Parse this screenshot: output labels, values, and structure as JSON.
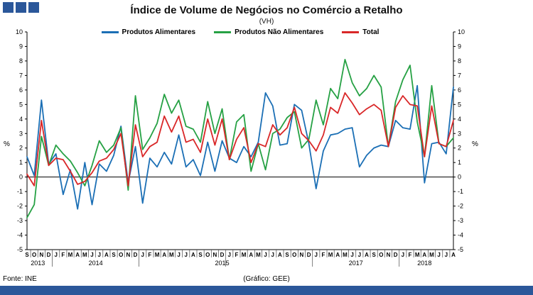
{
  "footer": {
    "source": "Fonte: INE",
    "credit": "(Gráfico: GEE)"
  },
  "colors": {
    "accent_blue": "#2b579a",
    "axis": "#000000"
  },
  "chart_data": {
    "type": "line",
    "title": "Índice de Volume de Negócios no Comércio a Retalho",
    "subtitle": "(VH)",
    "ylabel": "%",
    "ylabel_right": "%",
    "ylim": [
      -5,
      10
    ],
    "y_ticks": [
      10,
      9,
      8,
      7,
      6,
      5,
      4,
      3,
      2,
      1,
      0,
      -1,
      -2,
      -3,
      -4,
      -5
    ],
    "grid": false,
    "legend_position": "top",
    "months": [
      "S",
      "O",
      "N",
      "D",
      "J",
      "F",
      "M",
      "A",
      "M",
      "J",
      "J",
      "A",
      "S",
      "O",
      "N",
      "D",
      "J",
      "F",
      "M",
      "A",
      "M",
      "J",
      "J",
      "A",
      "S",
      "O",
      "N",
      "D",
      "J",
      "F",
      "M",
      "A",
      "M",
      "J",
      "J",
      "A",
      "S",
      "O",
      "N",
      "D",
      "J",
      "F",
      "M",
      "A",
      "M",
      "J",
      "J",
      "A",
      "S",
      "O",
      "N",
      "D",
      "J",
      "F",
      "M",
      "A",
      "M",
      "J",
      "J",
      "A"
    ],
    "years": [
      {
        "label": "2013",
        "pos": 1.5
      },
      {
        "label": "2014",
        "pos": 9.5
      },
      {
        "label": "2015",
        "pos": 27
      },
      {
        "label": "2017",
        "pos": 45.5
      },
      {
        "label": "2018",
        "pos": 55
      }
    ],
    "year_breaks": [
      3,
      15,
      27,
      39,
      51
    ],
    "series": [
      {
        "name": "Produtos Alimentares",
        "color": "#1b6fb5",
        "values": [
          1.4,
          0.1,
          5.3,
          0.9,
          1.6,
          -1.2,
          0.5,
          -2.2,
          1.0,
          -1.9,
          0.9,
          0.4,
          1.5,
          3.5,
          -0.4,
          2.1,
          -1.8,
          1.3,
          0.7,
          1.7,
          0.9,
          2.9,
          0.7,
          1.2,
          0.1,
          2.4,
          0.4,
          2.5,
          1.3,
          1.0,
          2.1,
          1.4,
          2.4,
          5.8,
          4.9,
          2.2,
          2.3,
          5.0,
          4.6,
          2.3,
          -0.8,
          1.8,
          2.9,
          3.0,
          3.3,
          3.4,
          0.7,
          1.5,
          2.0,
          2.2,
          2.1,
          3.9,
          3.4,
          3.3,
          6.3,
          -0.4,
          2.3,
          2.4,
          1.6,
          6.2
        ]
      },
      {
        "name": "Produtos Não Alimentares",
        "color": "#26a144",
        "values": [
          -2.8,
          -1.9,
          2.8,
          0.8,
          2.2,
          1.6,
          1.1,
          0.3,
          -0.6,
          0.8,
          2.5,
          1.7,
          2.2,
          3.4,
          -0.9,
          5.6,
          1.9,
          2.7,
          3.7,
          5.7,
          4.4,
          5.3,
          3.5,
          3.3,
          2.4,
          5.2,
          3.0,
          4.7,
          1.2,
          3.8,
          4.3,
          0.4,
          2.3,
          0.5,
          3.0,
          3.3,
          4.1,
          4.5,
          2.0,
          2.6,
          5.3,
          3.6,
          6.1,
          5.4,
          8.1,
          6.5,
          5.6,
          6.1,
          7.0,
          6.2,
          2.1,
          5.2,
          6.7,
          7.7,
          3.8,
          1.4,
          6.3,
          2.3,
          2.1,
          2.7
        ]
      },
      {
        "name": "Total",
        "color": "#d92728",
        "values": [
          0.2,
          -0.6,
          3.9,
          0.8,
          1.3,
          1.2,
          0.4,
          -0.5,
          -0.3,
          0.3,
          1.1,
          1.3,
          1.9,
          3.0,
          -0.6,
          3.6,
          1.4,
          2.1,
          2.4,
          4.2,
          3.1,
          4.2,
          2.4,
          2.6,
          1.7,
          4.0,
          2.2,
          4.0,
          1.2,
          2.6,
          3.4,
          1.0,
          2.3,
          2.1,
          3.6,
          2.9,
          3.4,
          4.8,
          3.0,
          2.5,
          1.8,
          2.9,
          4.8,
          4.4,
          5.8,
          5.1,
          4.3,
          4.7,
          5.0,
          4.6,
          2.1,
          4.8,
          5.6,
          5.0,
          4.9,
          1.4,
          4.9,
          2.3,
          2.1,
          3.9
        ]
      }
    ]
  }
}
